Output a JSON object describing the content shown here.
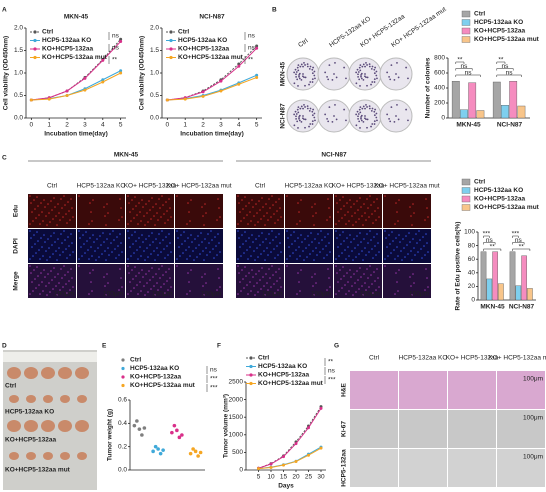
{
  "figure": {
    "panel_letters": [
      "A",
      "B",
      "C",
      "D",
      "E",
      "F",
      "G"
    ],
    "b_images": {
      "columns": [
        "Ctrl",
        "HCP5-132aa KO",
        "KO+ HCP5-132aa",
        "KO+ HCP5-132aa mut"
      ],
      "rows": [
        "MKN-45",
        "NCI-N87"
      ]
    },
    "c_images": {
      "groups": [
        "MKN-45",
        "NCI-N87"
      ],
      "columns": [
        "Ctrl",
        "HCP5-132aa KO",
        "KO+ HCP5-132aa",
        "KO+ HCP5-132aa mut"
      ],
      "rows": [
        "Edu",
        "DAPI",
        "Merge"
      ],
      "scale": "100μm"
    },
    "d_photo": {
      "rows": [
        "Ctrl",
        "HCP5-132aa KO",
        "KO+HCP5-132aa",
        "KO+HCP5-132aa mut"
      ]
    },
    "g_images": {
      "columns": [
        "Ctrl",
        "HCP5-132aa KO",
        "KO+ HCP5-132aa",
        "KO+ HCP5-132aa mut"
      ],
      "rows": [
        "H&E",
        "Ki-67",
        "HCP5-132aa"
      ],
      "scale": "100μm"
    }
  },
  "chart_data": [
    {
      "type": "line",
      "title": "MKN-45",
      "x": [
        0,
        1,
        2,
        3,
        4,
        5
      ],
      "xlim": [
        -0.3,
        5.3
      ],
      "xticks": [
        0,
        1,
        2,
        3,
        4,
        5
      ],
      "ylim": [
        0,
        2
      ],
      "yticks": [
        {
          "value": 0,
          "label": "0.0"
        },
        {
          "value": 0.5,
          "label": "0.5"
        },
        {
          "value": 1,
          "label": "1.0"
        },
        {
          "value": 1.5,
          "label": "1.5"
        },
        {
          "value": 2,
          "label": "2.0"
        }
      ],
      "xlabel": "Incubation time(day)",
      "ylabel": "Cell viability (OD450nm)",
      "annotations": [
        "ns",
        "ns",
        "**"
      ],
      "series": [
        {
          "name": "Ctrl",
          "color": "#555555",
          "linestyle": "dashed",
          "values": [
            0.4,
            0.45,
            0.6,
            0.9,
            1.3,
            1.75
          ]
        },
        {
          "name": "HCP5-132aa KO",
          "color": "#3fa9d9",
          "values": [
            0.4,
            0.43,
            0.5,
            0.65,
            0.85,
            1.05
          ]
        },
        {
          "name": "KO+HCP5-132aa",
          "color": "#d9308a",
          "values": [
            0.4,
            0.45,
            0.6,
            0.88,
            1.28,
            1.7
          ]
        },
        {
          "name": "KO+HCP5-132aa mut",
          "color": "#f5a623",
          "values": [
            0.4,
            0.42,
            0.5,
            0.62,
            0.8,
            1.0
          ]
        }
      ]
    },
    {
      "type": "line",
      "title": "NCI-N87",
      "x": [
        0,
        1,
        2,
        3,
        4,
        5
      ],
      "xlim": [
        -0.3,
        5.3
      ],
      "xticks": [
        0,
        1,
        2,
        3,
        4,
        5
      ],
      "ylim": [
        0,
        2
      ],
      "yticks": [
        {
          "value": 0,
          "label": "0.0"
        },
        {
          "value": 0.5,
          "label": "0.5"
        },
        {
          "value": 1,
          "label": "1.0"
        },
        {
          "value": 1.5,
          "label": "1.5"
        },
        {
          "value": 2,
          "label": "2.0"
        }
      ],
      "xlabel": "Incubation time(day)",
      "ylabel": "Cell viability (OD450nm)",
      "annotations": [
        "ns",
        "ns",
        "**"
      ],
      "series": [
        {
          "name": "Ctrl",
          "color": "#555555",
          "linestyle": "dashed",
          "values": [
            0.4,
            0.45,
            0.6,
            0.85,
            1.2,
            1.6
          ]
        },
        {
          "name": "HCP5-132aa KO",
          "color": "#3fa9d9",
          "values": [
            0.4,
            0.43,
            0.5,
            0.62,
            0.78,
            0.95
          ]
        },
        {
          "name": "KO+HCP5-132aa",
          "color": "#d9308a",
          "values": [
            0.4,
            0.45,
            0.58,
            0.82,
            1.15,
            1.55
          ]
        },
        {
          "name": "KO+HCP5-132aa mut",
          "color": "#f5a623",
          "values": [
            0.4,
            0.42,
            0.48,
            0.6,
            0.75,
            0.9
          ]
        }
      ]
    },
    {
      "type": "bar",
      "categories": [
        "MKN-45",
        "NCI-N87"
      ],
      "ylabel": "Number of colonies",
      "ylim": [
        0,
        800
      ],
      "yticks": [
        0,
        200,
        400,
        600,
        800
      ],
      "annotations": [
        "**",
        "ns",
        "ns",
        "**",
        "ns",
        "ns"
      ],
      "series": [
        {
          "name": "Ctrl",
          "color": "#a6a6a6",
          "values": [
            490,
            480
          ]
        },
        {
          "name": "HCP5-132aa KO",
          "color": "#7ecfee",
          "values": [
            110,
            170
          ]
        },
        {
          "name": "KO+HCP5-132aa",
          "color": "#f58cbf",
          "values": [
            470,
            490
          ]
        },
        {
          "name": "KO+HCP5-132aa mut",
          "color": "#f8c58a",
          "values": [
            100,
            160
          ]
        }
      ]
    },
    {
      "type": "bar",
      "categories": [
        "MKN-45",
        "NCI-N87"
      ],
      "ylabel": "Rate of Edu positive cells(%)",
      "ylim": [
        0,
        100
      ],
      "yticks": [
        0,
        20,
        40,
        60,
        80,
        100
      ],
      "annotations": [
        "***",
        "ns",
        "**",
        "***",
        "ns",
        "**"
      ],
      "series": [
        {
          "name": "Ctrl",
          "color": "#a6a6a6",
          "values": [
            71,
            71
          ]
        },
        {
          "name": "HCP5-132aa KO",
          "color": "#7ecfee",
          "values": [
            31,
            21
          ]
        },
        {
          "name": "KO+HCP5-132aa",
          "color": "#f58cbf",
          "values": [
            71,
            65
          ]
        },
        {
          "name": "KO+HCP5-132aa mut",
          "color": "#f8c58a",
          "values": [
            24,
            17
          ]
        }
      ]
    },
    {
      "type": "strip",
      "ylabel": "Tumor weight (g)",
      "ylim": [
        0,
        0.6
      ],
      "yticks": [
        {
          "value": 0,
          "label": "0.0"
        },
        {
          "value": 0.2,
          "label": "0.2"
        },
        {
          "value": 0.4,
          "label": "0.4"
        },
        {
          "value": 0.6,
          "label": "0.6"
        }
      ],
      "annotations": [
        "ns",
        "***",
        "***"
      ],
      "series": [
        {
          "name": "Ctrl",
          "color": "#7f7f7f",
          "values": [
            0.38,
            0.42,
            0.35,
            0.3,
            0.36
          ]
        },
        {
          "name": "HCP5-132aa KO",
          "color": "#3fa9d9",
          "values": [
            0.16,
            0.2,
            0.18,
            0.14,
            0.17
          ]
        },
        {
          "name": "KO+HCP5-132aa",
          "color": "#d9308a",
          "values": [
            0.32,
            0.38,
            0.34,
            0.28,
            0.3
          ]
        },
        {
          "name": "KO+HCP5-132aa mut",
          "color": "#f5a623",
          "values": [
            0.14,
            0.18,
            0.16,
            0.12,
            0.15
          ]
        }
      ]
    },
    {
      "type": "line",
      "x": [
        5,
        10,
        15,
        20,
        25,
        30
      ],
      "xlim": [
        0,
        32
      ],
      "xticks": [
        5,
        10,
        15,
        20,
        25,
        30
      ],
      "ylim": [
        0,
        2500
      ],
      "yticks": [
        0,
        500,
        1000,
        1500,
        2000,
        2500
      ],
      "xlabel": "Days",
      "ylabel": "Tumor volume (mm³)",
      "annotations": [
        "**",
        "ns",
        "***"
      ],
      "series": [
        {
          "name": "Ctrl",
          "color": "#555555",
          "linestyle": "dashed",
          "values": [
            50,
            180,
            400,
            800,
            1250,
            1800
          ]
        },
        {
          "name": "HCP5-132aa KO",
          "color": "#3fa9d9",
          "values": [
            40,
            80,
            150,
            250,
            450,
            650
          ]
        },
        {
          "name": "KO+HCP5-132aa",
          "color": "#d9308a",
          "values": [
            50,
            170,
            380,
            750,
            1200,
            1750
          ]
        },
        {
          "name": "KO+HCP5-132aa mut",
          "color": "#f5a623",
          "values": [
            40,
            70,
            140,
            240,
            420,
            620
          ]
        }
      ]
    }
  ]
}
